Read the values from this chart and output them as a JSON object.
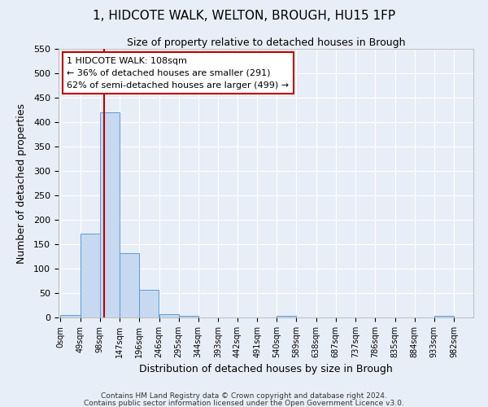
{
  "title": "1, HIDCOTE WALK, WELTON, BROUGH, HU15 1FP",
  "subtitle": "Size of property relative to detached houses in Brough",
  "xlabel": "Distribution of detached houses by size in Brough",
  "ylabel": "Number of detached properties",
  "bin_edges": [
    0,
    49,
    98,
    147,
    196,
    246,
    295,
    344,
    393,
    442,
    491,
    540,
    589,
    638,
    687,
    737,
    786,
    835,
    884,
    933,
    982
  ],
  "bin_labels": [
    "0sqm",
    "49sqm",
    "98sqm",
    "147sqm",
    "196sqm",
    "246sqm",
    "295sqm",
    "344sqm",
    "393sqm",
    "442sqm",
    "491sqm",
    "540sqm",
    "589sqm",
    "638sqm",
    "687sqm",
    "737sqm",
    "786sqm",
    "835sqm",
    "884sqm",
    "933sqm",
    "982sqm"
  ],
  "bar_heights": [
    5,
    172,
    420,
    132,
    57,
    7,
    3,
    0,
    0,
    0,
    0,
    3,
    0,
    0,
    0,
    0,
    0,
    0,
    0,
    3
  ],
  "bar_color": "#c6d9f0",
  "bar_edge_color": "#5b9bd5",
  "ylim": [
    0,
    550
  ],
  "yticks": [
    0,
    50,
    100,
    150,
    200,
    250,
    300,
    350,
    400,
    450,
    500,
    550
  ],
  "vline_x": 108,
  "vline_color": "#c00000",
  "annotation_title": "1 HIDCOTE WALK: 108sqm",
  "annotation_line1": "← 36% of detached houses are smaller (291)",
  "annotation_line2": "62% of semi-detached houses are larger (499) →",
  "annotation_box_color": "#ffffff",
  "annotation_box_edge": "#c00000",
  "footnote1": "Contains HM Land Registry data © Crown copyright and database right 2024.",
  "footnote2": "Contains public sector information licensed under the Open Government Licence v3.0.",
  "background_color": "#e8eef7",
  "plot_background": "#e8eef7"
}
